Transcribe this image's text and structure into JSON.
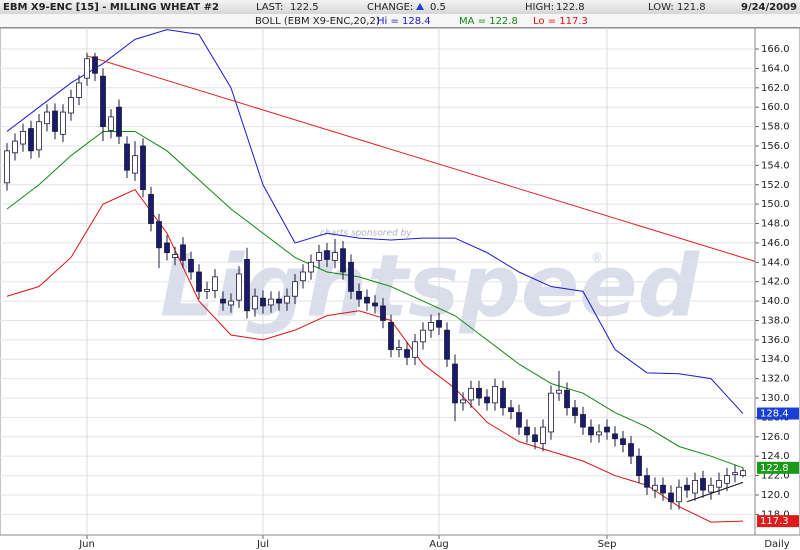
{
  "chart_data": {
    "type": "candlestick",
    "title": "EBM X9-ENC [15] - MILLING WHEAT #2",
    "header": {
      "last_label": "LAST:",
      "last": "122.5",
      "change_label": "CHANGE:",
      "change": "0.5",
      "high_label": "HIGH:",
      "high": "122.8",
      "low_label": "LOW:",
      "low": "121.8",
      "date": "9/24/2009",
      "study": "BOLL (EBM X9-ENC,20,2)"
    },
    "period": "Daily",
    "grid": true,
    "xlim": [
      -0.875,
      93.5
    ],
    "ylim": [
      115.87,
      168.17
    ],
    "xticks": [
      {
        "value": 10,
        "label": "Jun"
      },
      {
        "value": 32,
        "label": "Jul"
      },
      {
        "value": 54,
        "label": "Aug"
      },
      {
        "value": 75,
        "label": "Sep"
      }
    ],
    "yticks": [
      {
        "value": 118,
        "label": "118.0"
      },
      {
        "value": 120,
        "label": "120.0"
      },
      {
        "value": 122,
        "label": "122.0"
      },
      {
        "value": 124,
        "label": "124.0"
      },
      {
        "value": 126,
        "label": "126.0"
      },
      {
        "value": 128,
        "label": "128.0"
      },
      {
        "value": 130,
        "label": "130.0"
      },
      {
        "value": 132,
        "label": "132.0"
      },
      {
        "value": 134,
        "label": "134.0"
      },
      {
        "value": 136,
        "label": "136.0"
      },
      {
        "value": 138,
        "label": "138.0"
      },
      {
        "value": 140,
        "label": "140.0"
      },
      {
        "value": 142,
        "label": "142.0"
      },
      {
        "value": 144,
        "label": "144.0"
      },
      {
        "value": 146,
        "label": "146.0"
      },
      {
        "value": 148,
        "label": "148.0"
      },
      {
        "value": 150,
        "label": "150.0"
      },
      {
        "value": 152,
        "label": "152.0"
      },
      {
        "value": 154,
        "label": "154.0"
      },
      {
        "value": 156,
        "label": "156.0"
      },
      {
        "value": 158,
        "label": "158.0"
      },
      {
        "value": 160,
        "label": "160.0"
      },
      {
        "value": 162,
        "label": "162.0"
      },
      {
        "value": 164,
        "label": "164.0"
      },
      {
        "value": 166,
        "label": "166.0"
      }
    ],
    "candles": {
      "up_color": "#ffffff",
      "down_color": "#1b1b6b",
      "edge_color": "#1b1b3b",
      "open": [
        152.2,
        155.3,
        156.2,
        157.8,
        155.6,
        158.3,
        159.6,
        157.2,
        159.4,
        161.0,
        163.0,
        165.2,
        163.2,
        157.6,
        160.0,
        156.2,
        153.2,
        156.0,
        151.0,
        148.2,
        146.0,
        144.5,
        145.8,
        144.3,
        143.0,
        141.0,
        141.1,
        140.2,
        139.6,
        140.1,
        144.3,
        139.2,
        140.3,
        139.6,
        140.2,
        139.8,
        140.5,
        142.1,
        143.0,
        144.2,
        145.2,
        144.2,
        145.4,
        144.0,
        141.0,
        140.4,
        139.8,
        139.5,
        137.8,
        135.0,
        135.0,
        134.2,
        135.8,
        137.0,
        138.0,
        137.0,
        133.5,
        129.5,
        129.8,
        131.0,
        130.1,
        129.5,
        131.0,
        129.0,
        128.5,
        127.0,
        126.2,
        125.3,
        126.5,
        130.5,
        130.8,
        129.0,
        128.3,
        127.0,
        126.2,
        127.0,
        126.3,
        125.8,
        125.3,
        124.0,
        122.0,
        120.5,
        121.0,
        120.2,
        119.3,
        121.0,
        120.2,
        121.7,
        120.3,
        120.8,
        121.2,
        122.1,
        122.0
      ],
      "high": [
        156.3,
        157.3,
        158.3,
        158.6,
        159.3,
        160.3,
        160.4,
        160.3,
        161.8,
        163.3,
        165.6,
        165.6,
        164.0,
        159.8,
        160.8,
        157.0,
        156.5,
        156.8,
        151.8,
        149.0,
        146.8,
        145.6,
        146.6,
        145.1,
        143.8,
        142.0,
        143.3,
        141.0,
        140.8,
        143.6,
        145.5,
        141.3,
        141.1,
        141.0,
        141.0,
        141.3,
        142.8,
        143.8,
        144.8,
        145.8,
        146.0,
        146.4,
        146.2,
        144.8,
        141.8,
        141.2,
        140.6,
        140.3,
        138.6,
        136.0,
        135.8,
        136.6,
        137.8,
        138.6,
        138.8,
        137.8,
        134.5,
        130.6,
        131.8,
        131.8,
        130.9,
        132.0,
        131.8,
        129.8,
        129.3,
        127.8,
        127.0,
        127.8,
        131.3,
        132.8,
        131.6,
        129.8,
        129.1,
        127.8,
        127.3,
        127.8,
        127.1,
        126.6,
        126.1,
        124.8,
        122.8,
        121.8,
        121.8,
        121.0,
        121.6,
        121.8,
        122.3,
        122.5,
        121.8,
        122.3,
        122.8,
        123.1,
        122.8
      ],
      "low": [
        151.4,
        154.5,
        155.4,
        154.7,
        154.8,
        157.5,
        156.7,
        156.4,
        158.6,
        160.2,
        162.2,
        162.7,
        156.5,
        156.8,
        156.2,
        152.7,
        152.4,
        150.7,
        147.2,
        143.4,
        144.2,
        143.7,
        143.4,
        142.2,
        140.2,
        140.2,
        140.3,
        139.0,
        138.8,
        139.3,
        138.2,
        138.4,
        138.7,
        138.8,
        139.0,
        139.0,
        139.7,
        141.3,
        142.2,
        143.4,
        143.5,
        143.4,
        142.2,
        140.2,
        139.4,
        139.0,
        138.7,
        137.2,
        134.2,
        134.2,
        133.4,
        133.4,
        135.0,
        136.2,
        136.5,
        133.2,
        127.6,
        128.7,
        129.0,
        129.2,
        128.7,
        128.7,
        128.2,
        127.8,
        126.2,
        125.4,
        124.7,
        124.5,
        125.7,
        129.7,
        128.2,
        127.4,
        126.2,
        125.4,
        125.4,
        125.7,
        125.0,
        124.4,
        123.2,
        121.2,
        120.0,
        119.7,
        119.4,
        118.5,
        118.5,
        119.7,
        119.4,
        119.7,
        119.5,
        120.0,
        120.4,
        121.3,
        121.8
      ],
      "close": [
        155.5,
        156.5,
        157.5,
        155.5,
        158.5,
        159.5,
        157.5,
        159.5,
        161.0,
        162.5,
        165.0,
        163.5,
        158.0,
        159.0,
        157.0,
        153.5,
        155.0,
        151.5,
        148.0,
        145.5,
        145.0,
        144.8,
        144.2,
        143.0,
        141.0,
        141.2,
        142.5,
        139.8,
        140.0,
        142.8,
        139.0,
        140.5,
        139.5,
        140.2,
        139.8,
        140.5,
        142.0,
        143.0,
        144.0,
        145.0,
        144.3,
        145.0,
        143.0,
        141.0,
        140.2,
        139.8,
        139.5,
        138.0,
        135.0,
        135.2,
        134.2,
        135.8,
        137.0,
        137.8,
        137.3,
        134.0,
        129.5,
        129.8,
        131.0,
        130.0,
        129.5,
        131.2,
        129.0,
        128.6,
        127.0,
        126.2,
        125.5,
        127.0,
        130.5,
        130.8,
        129.0,
        128.2,
        127.0,
        126.2,
        126.5,
        126.5,
        125.8,
        125.2,
        124.0,
        122.0,
        120.8,
        121.0,
        120.2,
        119.3,
        120.8,
        120.5,
        121.5,
        120.5,
        121.0,
        121.5,
        122.0,
        122.3,
        122.5
      ]
    },
    "bands": [
      {
        "label": "Hi = 128.4",
        "color": "#1a1ad0",
        "box_color": "#1a3fd6",
        "x": [
          0,
          4,
          8,
          12,
          16,
          20,
          24,
          28,
          32,
          36,
          40,
          44,
          48,
          52,
          56,
          60,
          64,
          68,
          72,
          76,
          80,
          84,
          88,
          92
        ],
        "values": [
          157.5,
          160.0,
          162.5,
          164.5,
          167.0,
          168.0,
          167.5,
          162.0,
          152.0,
          146.0,
          147.0,
          146.5,
          146.3,
          146.5,
          146.5,
          145.0,
          143.0,
          141.5,
          141.0,
          135.0,
          132.6,
          132.5,
          132.0,
          128.4
        ]
      },
      {
        "label": "MA = 122.8",
        "color": "#118811",
        "box_color": "#1a9a1a",
        "x": [
          0,
          4,
          8,
          12,
          16,
          20,
          24,
          28,
          32,
          36,
          40,
          44,
          48,
          52,
          56,
          60,
          64,
          68,
          72,
          76,
          80,
          84,
          88,
          92
        ],
        "values": [
          149.5,
          152.0,
          155.0,
          157.5,
          157.5,
          155.5,
          152.5,
          149.5,
          147.0,
          144.5,
          143.0,
          142.5,
          141.5,
          140.0,
          138.5,
          136.0,
          133.5,
          131.5,
          130.5,
          128.5,
          127.0,
          125.0,
          124.0,
          122.8
        ]
      },
      {
        "label": "Lo = 117.3",
        "color": "#dd1111",
        "box_color": "#e01a1a",
        "x": [
          0,
          4,
          8,
          12,
          16,
          20,
          24,
          28,
          32,
          36,
          40,
          44,
          48,
          52,
          56,
          60,
          64,
          68,
          72,
          76,
          80,
          84,
          88,
          92
        ],
        "values": [
          140.5,
          141.5,
          144.5,
          150.0,
          151.5,
          147.0,
          140.0,
          136.5,
          136.0,
          137.0,
          138.5,
          139.0,
          138.0,
          133.5,
          131.0,
          127.5,
          125.5,
          124.5,
          123.5,
          122.0,
          121.0,
          118.8,
          117.2,
          117.3
        ]
      }
    ],
    "trendlines": [
      {
        "color": "#dd2222",
        "x": [
          10,
          93.5
        ],
        "y": [
          165.3,
          144.1
        ]
      },
      {
        "color": "#111111",
        "x": [
          85,
          92
        ],
        "y": [
          119.3,
          121.3
        ]
      }
    ],
    "watermark": {
      "line1": "charts sponsored by",
      "line2": "Lightspeed",
      "mark": "®"
    }
  }
}
